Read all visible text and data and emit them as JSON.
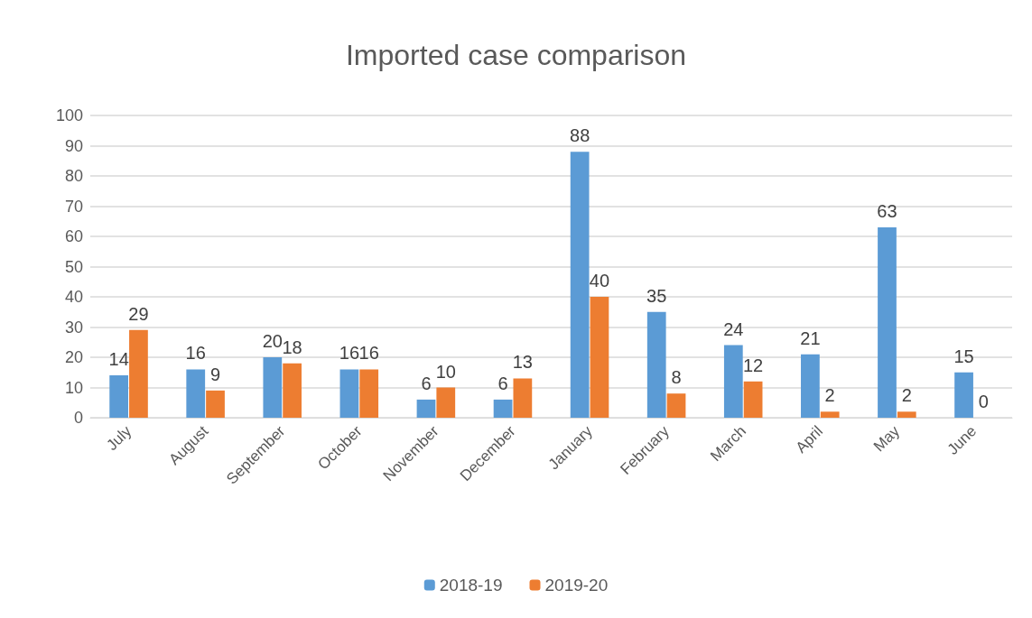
{
  "chart_data": {
    "type": "bar",
    "title": "Imported case comparison",
    "categories": [
      "July",
      "August",
      "September",
      "October",
      "November",
      "December",
      "January",
      "February",
      "March",
      "April",
      "May",
      "June"
    ],
    "series": [
      {
        "name": "2018-19",
        "color": "#5b9bd5",
        "values": [
          14,
          16,
          20,
          16,
          6,
          6,
          88,
          35,
          24,
          21,
          63,
          15
        ]
      },
      {
        "name": "2019-20",
        "color": "#ed7d31",
        "values": [
          29,
          9,
          18,
          16,
          10,
          13,
          40,
          8,
          12,
          2,
          2,
          0
        ]
      }
    ],
    "ylim": [
      0,
      100
    ],
    "yticks": [
      0,
      10,
      20,
      30,
      40,
      50,
      60,
      70,
      80,
      90,
      100
    ],
    "grid": "y",
    "legend": "bottom",
    "data_labels": true
  }
}
